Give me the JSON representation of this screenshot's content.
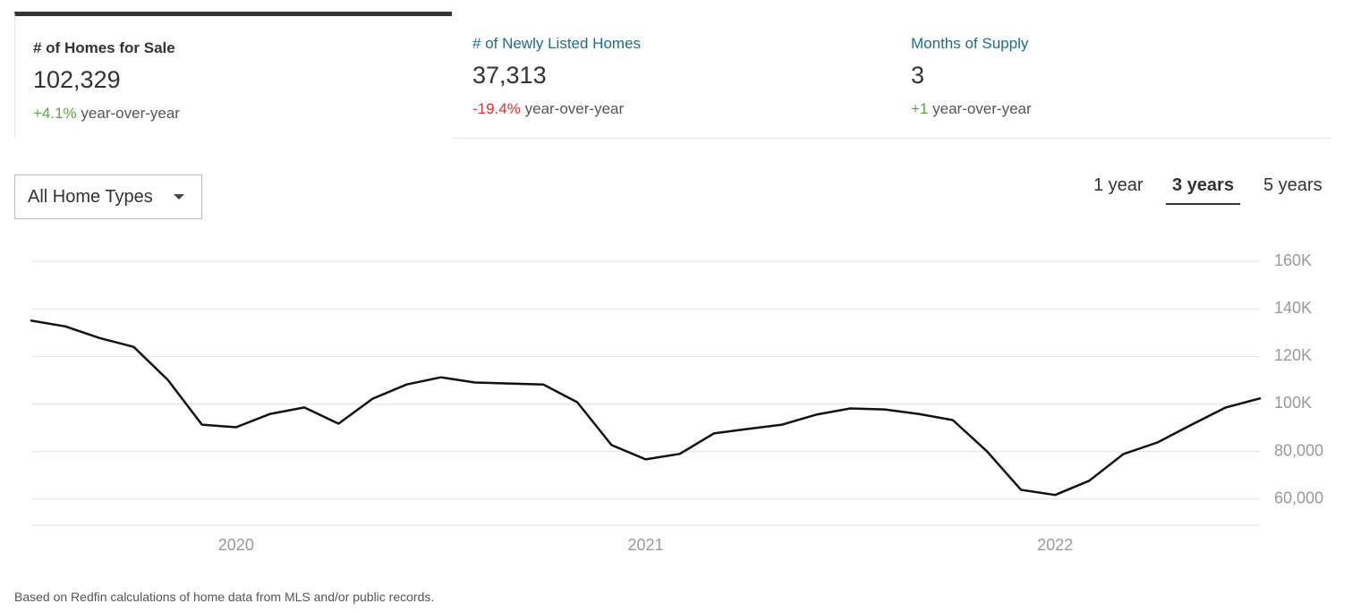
{
  "tabs": [
    {
      "title": "# of Homes for Sale",
      "value": "102,329",
      "change": "+4.1%",
      "change_suffix": "year-over-year",
      "change_color": "#5ba640",
      "selected": true
    },
    {
      "title": "# of Newly Listed Homes",
      "value": "37,313",
      "change": "-19.4%",
      "change_suffix": "year-over-year",
      "change_color": "#e0352b",
      "selected": false
    },
    {
      "title": "Months of Supply",
      "value": "3",
      "change": "+1",
      "change_suffix": "year-over-year",
      "change_color": "#5ba640",
      "selected": false
    }
  ],
  "filter": {
    "label": "All Home Types"
  },
  "ranges": [
    {
      "label": "1 year",
      "selected": false
    },
    {
      "label": "3 years",
      "selected": true
    },
    {
      "label": "5 years",
      "selected": false
    }
  ],
  "chart_data": {
    "type": "line",
    "categories": [
      null,
      null,
      null,
      null,
      null,
      null,
      "2020",
      null,
      null,
      null,
      null,
      null,
      null,
      null,
      null,
      null,
      null,
      null,
      "2021",
      null,
      null,
      null,
      null,
      null,
      null,
      null,
      null,
      null,
      null,
      null,
      "2022",
      null,
      null,
      null,
      null,
      null,
      null
    ],
    "values": [
      135000,
      132600,
      127700,
      124000,
      110100,
      91300,
      90200,
      95800,
      98500,
      91700,
      102200,
      108200,
      111200,
      109000,
      108600,
      108200,
      100700,
      82700,
      76700,
      79000,
      87600,
      89500,
      91300,
      95500,
      98100,
      97700,
      95800,
      93200,
      80100,
      63900,
      61700,
      67700,
      78900,
      83800,
      91300,
      98500,
      102329
    ],
    "color": "#111111",
    "ylim": [
      49000,
      160000
    ],
    "yticks": [
      {
        "value": 60000,
        "label": "60,000"
      },
      {
        "value": 80000,
        "label": "80,000"
      },
      {
        "value": 100000,
        "label": "100K"
      },
      {
        "value": 120000,
        "label": "120K"
      },
      {
        "value": 140000,
        "label": "140K"
      },
      {
        "value": 160000,
        "label": "160K"
      }
    ],
    "grid": true
  },
  "footnote": "Based on Redfin calculations of home data from MLS and/or public records."
}
